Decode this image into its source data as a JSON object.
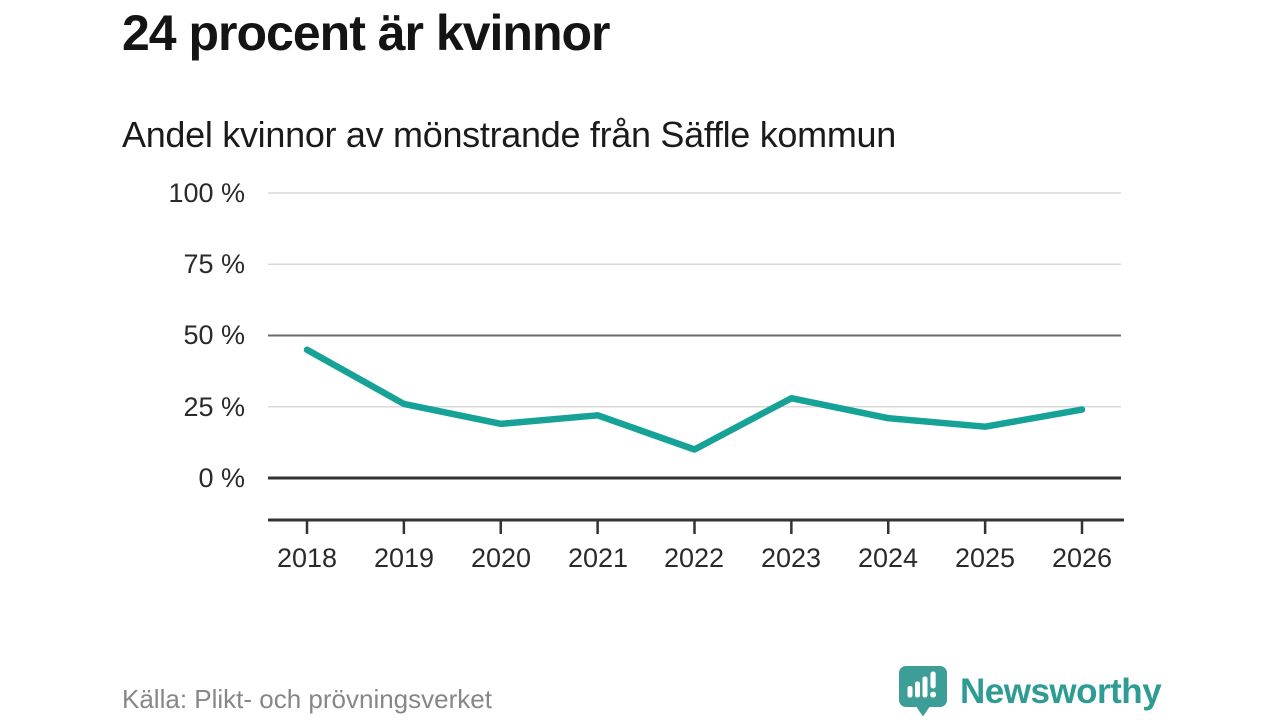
{
  "header": {
    "title": "24 procent är kvinnor",
    "subtitle": "Andel kvinnor av mönstrande från Säffle kommun"
  },
  "chart_data": {
    "type": "line",
    "title": "24 procent är kvinnor",
    "subtitle": "Andel kvinnor av mönstrande från Säffle kommun",
    "categories": [
      "2018",
      "2019",
      "2020",
      "2021",
      "2022",
      "2023",
      "2024",
      "2025",
      "2026"
    ],
    "series": [
      {
        "name": "Andel kvinnor av mönstrande",
        "values": [
          45,
          26,
          19,
          22,
          10,
          28,
          21,
          18,
          24
        ]
      }
    ],
    "unit": "%",
    "ylim": [
      0,
      100
    ],
    "yticks": [
      {
        "value": 100,
        "label": "100 %"
      },
      {
        "value": 75,
        "label": "75 %"
      },
      {
        "value": 50,
        "label": "50 %"
      },
      {
        "value": 25,
        "label": "25 %"
      },
      {
        "value": 0,
        "label": "0 %"
      }
    ],
    "grid": "horizontal",
    "legend": "none",
    "line_color": "#16A296",
    "grid_color": "#D9D9D9",
    "emphasized_gridline_value": 50,
    "emphasized_grid_color": "#6A6A6A",
    "baseline_value": 0,
    "axis_color": "#333333"
  },
  "footer": {
    "source": "Källa: Plikt- och prövningsverket",
    "brand_name": "Newsworthy",
    "brand_color": "#2E9C95",
    "brand_icon": "newsworthy-speech-bubble-barchart-icon"
  }
}
